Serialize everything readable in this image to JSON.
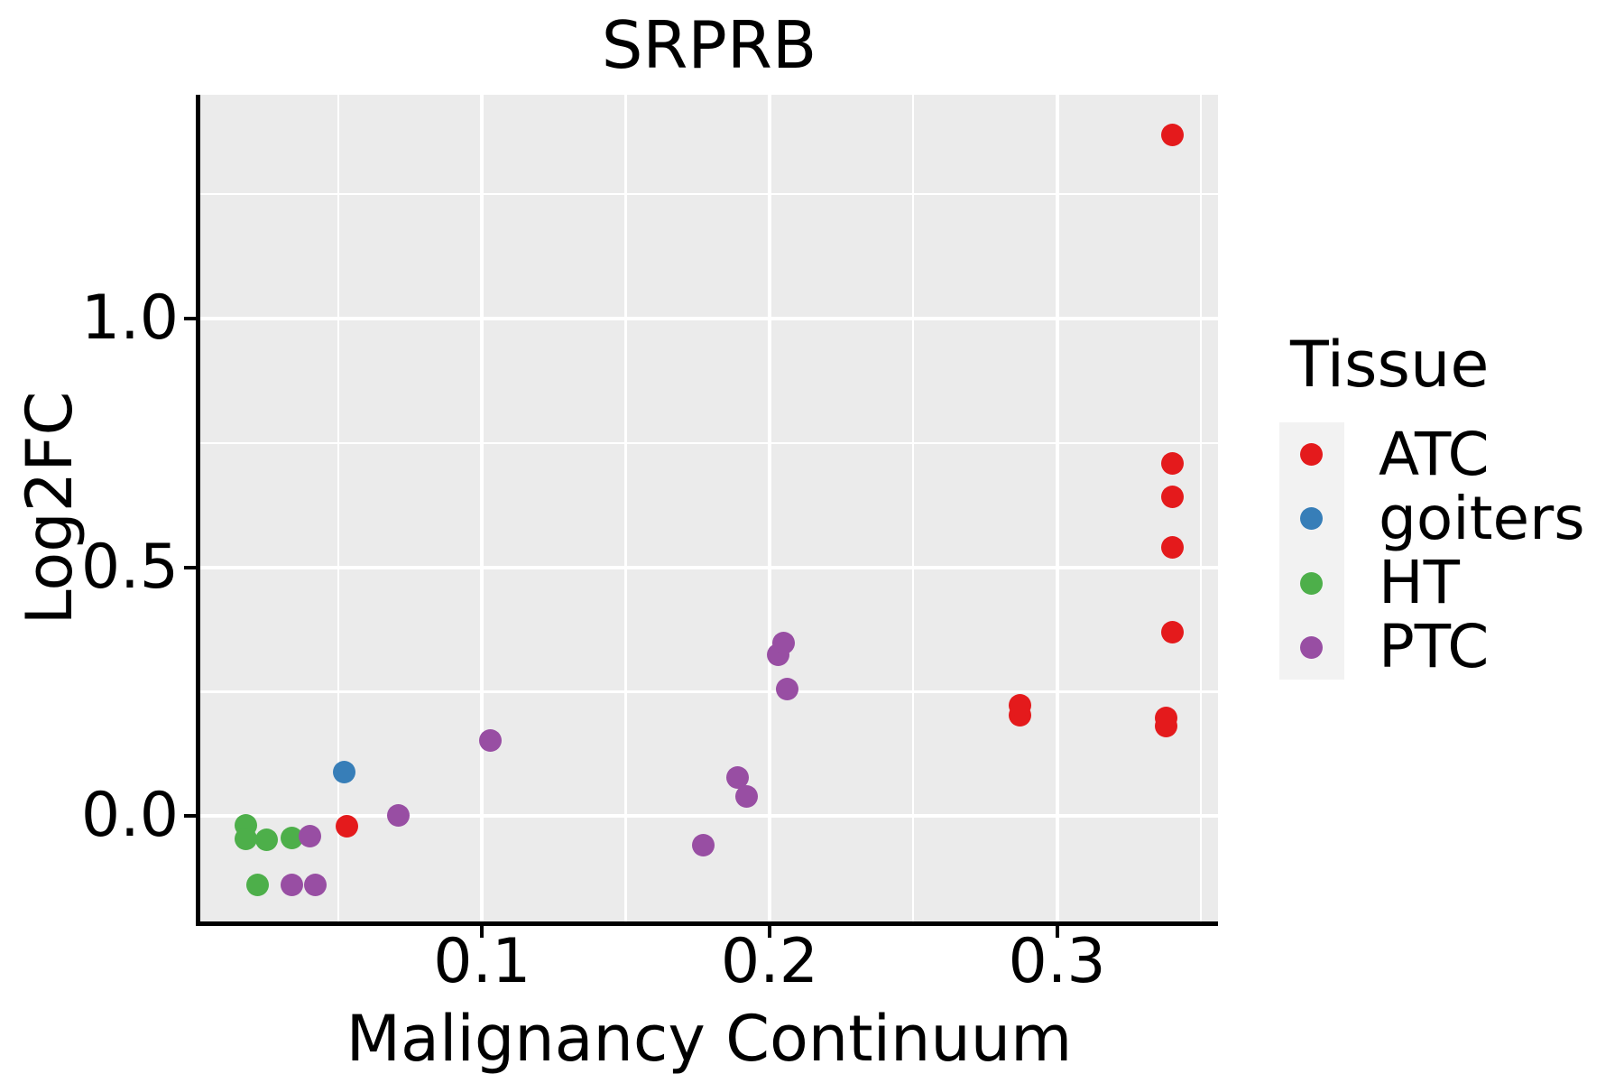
{
  "chart_data": {
    "type": "scatter",
    "title": "SRPRB",
    "xlabel": "Malignancy Continuum",
    "ylabel": "Log2FC",
    "xlim": [
      0.002,
      0.356
    ],
    "ylim": [
      -0.212,
      1.45
    ],
    "x_breaks": [
      0.1,
      0.2,
      0.3
    ],
    "x_minor_breaks": [
      0.05,
      0.15,
      0.25,
      0.35
    ],
    "x_tick_labels": [
      "0.1",
      "0.2",
      "0.3"
    ],
    "y_breaks": [
      0.0,
      0.5,
      1.0
    ],
    "y_minor_breaks": [
      0.25,
      0.75,
      1.25
    ],
    "y_tick_labels": [
      "0.0",
      "0.5",
      "1.0"
    ],
    "grid": true,
    "panel_background": "#EBEBEB",
    "gridline_color": "#FFFFFF",
    "legend_position": "right",
    "legend_title": "Tissue",
    "series": [
      {
        "name": "ATC",
        "color": "#E41A1C",
        "points": [
          [
            0.053,
            -0.021
          ],
          [
            0.287,
            0.202
          ],
          [
            0.287,
            0.222
          ],
          [
            0.338,
            0.181
          ],
          [
            0.338,
            0.197
          ],
          [
            0.34,
            0.37
          ],
          [
            0.34,
            0.54
          ],
          [
            0.34,
            0.641
          ],
          [
            0.34,
            0.709
          ],
          [
            0.34,
            1.37
          ]
        ]
      },
      {
        "name": "goiters",
        "color": "#377EB8",
        "points": [
          [
            0.052,
            0.089
          ]
        ]
      },
      {
        "name": "HT",
        "color": "#4DAF4A",
        "points": [
          [
            0.018,
            -0.019
          ],
          [
            0.018,
            -0.046
          ],
          [
            0.025,
            -0.047
          ],
          [
            0.034,
            -0.045
          ],
          [
            0.022,
            -0.138
          ]
        ]
      },
      {
        "name": "PTC",
        "color": "#984EA3",
        "points": [
          [
            0.04,
            -0.041
          ],
          [
            0.034,
            -0.138
          ],
          [
            0.042,
            -0.139
          ],
          [
            0.071,
            0.002
          ],
          [
            0.103,
            0.151
          ],
          [
            0.177,
            -0.058
          ],
          [
            0.189,
            0.077
          ],
          [
            0.192,
            0.039
          ],
          [
            0.203,
            0.325
          ],
          [
            0.205,
            0.347
          ],
          [
            0.206,
            0.256
          ]
        ]
      }
    ]
  },
  "legend": {
    "title": "Tissue",
    "entries": [
      {
        "label": "ATC",
        "color": "#E41A1C"
      },
      {
        "label": "goiters",
        "color": "#377EB8"
      },
      {
        "label": "HT",
        "color": "#4DAF4A"
      },
      {
        "label": "PTC",
        "color": "#984EA3"
      }
    ]
  },
  "colors": {
    "axis_text": "#000000",
    "axis_line": "#000000",
    "panel_bg": "#EBEBEB",
    "grid": "#FFFFFF",
    "legend_key_bg": "#F2F2F2"
  }
}
